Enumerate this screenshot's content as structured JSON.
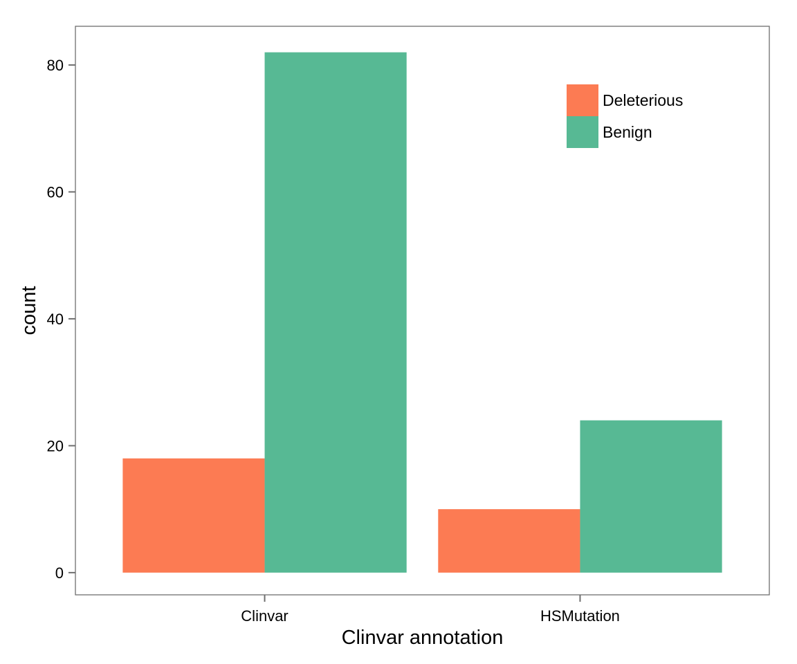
{
  "chart_data": {
    "type": "bar",
    "title": "",
    "xlabel": "Clinvar annotation",
    "ylabel": "count",
    "categories": [
      "Clinvar",
      "HSMutation"
    ],
    "series": [
      {
        "name": "Deleterious",
        "color": "#fc7b53",
        "values": [
          18,
          10
        ]
      },
      {
        "name": "Benign",
        "color": "#57b994",
        "values": [
          82,
          24
        ]
      }
    ],
    "ylim": [
      -3.5,
      86.1
    ],
    "yticks": [
      0,
      20,
      40,
      60,
      80
    ],
    "grid": false,
    "legend_position": "top-right",
    "frame_color": "#6e6e6e"
  }
}
